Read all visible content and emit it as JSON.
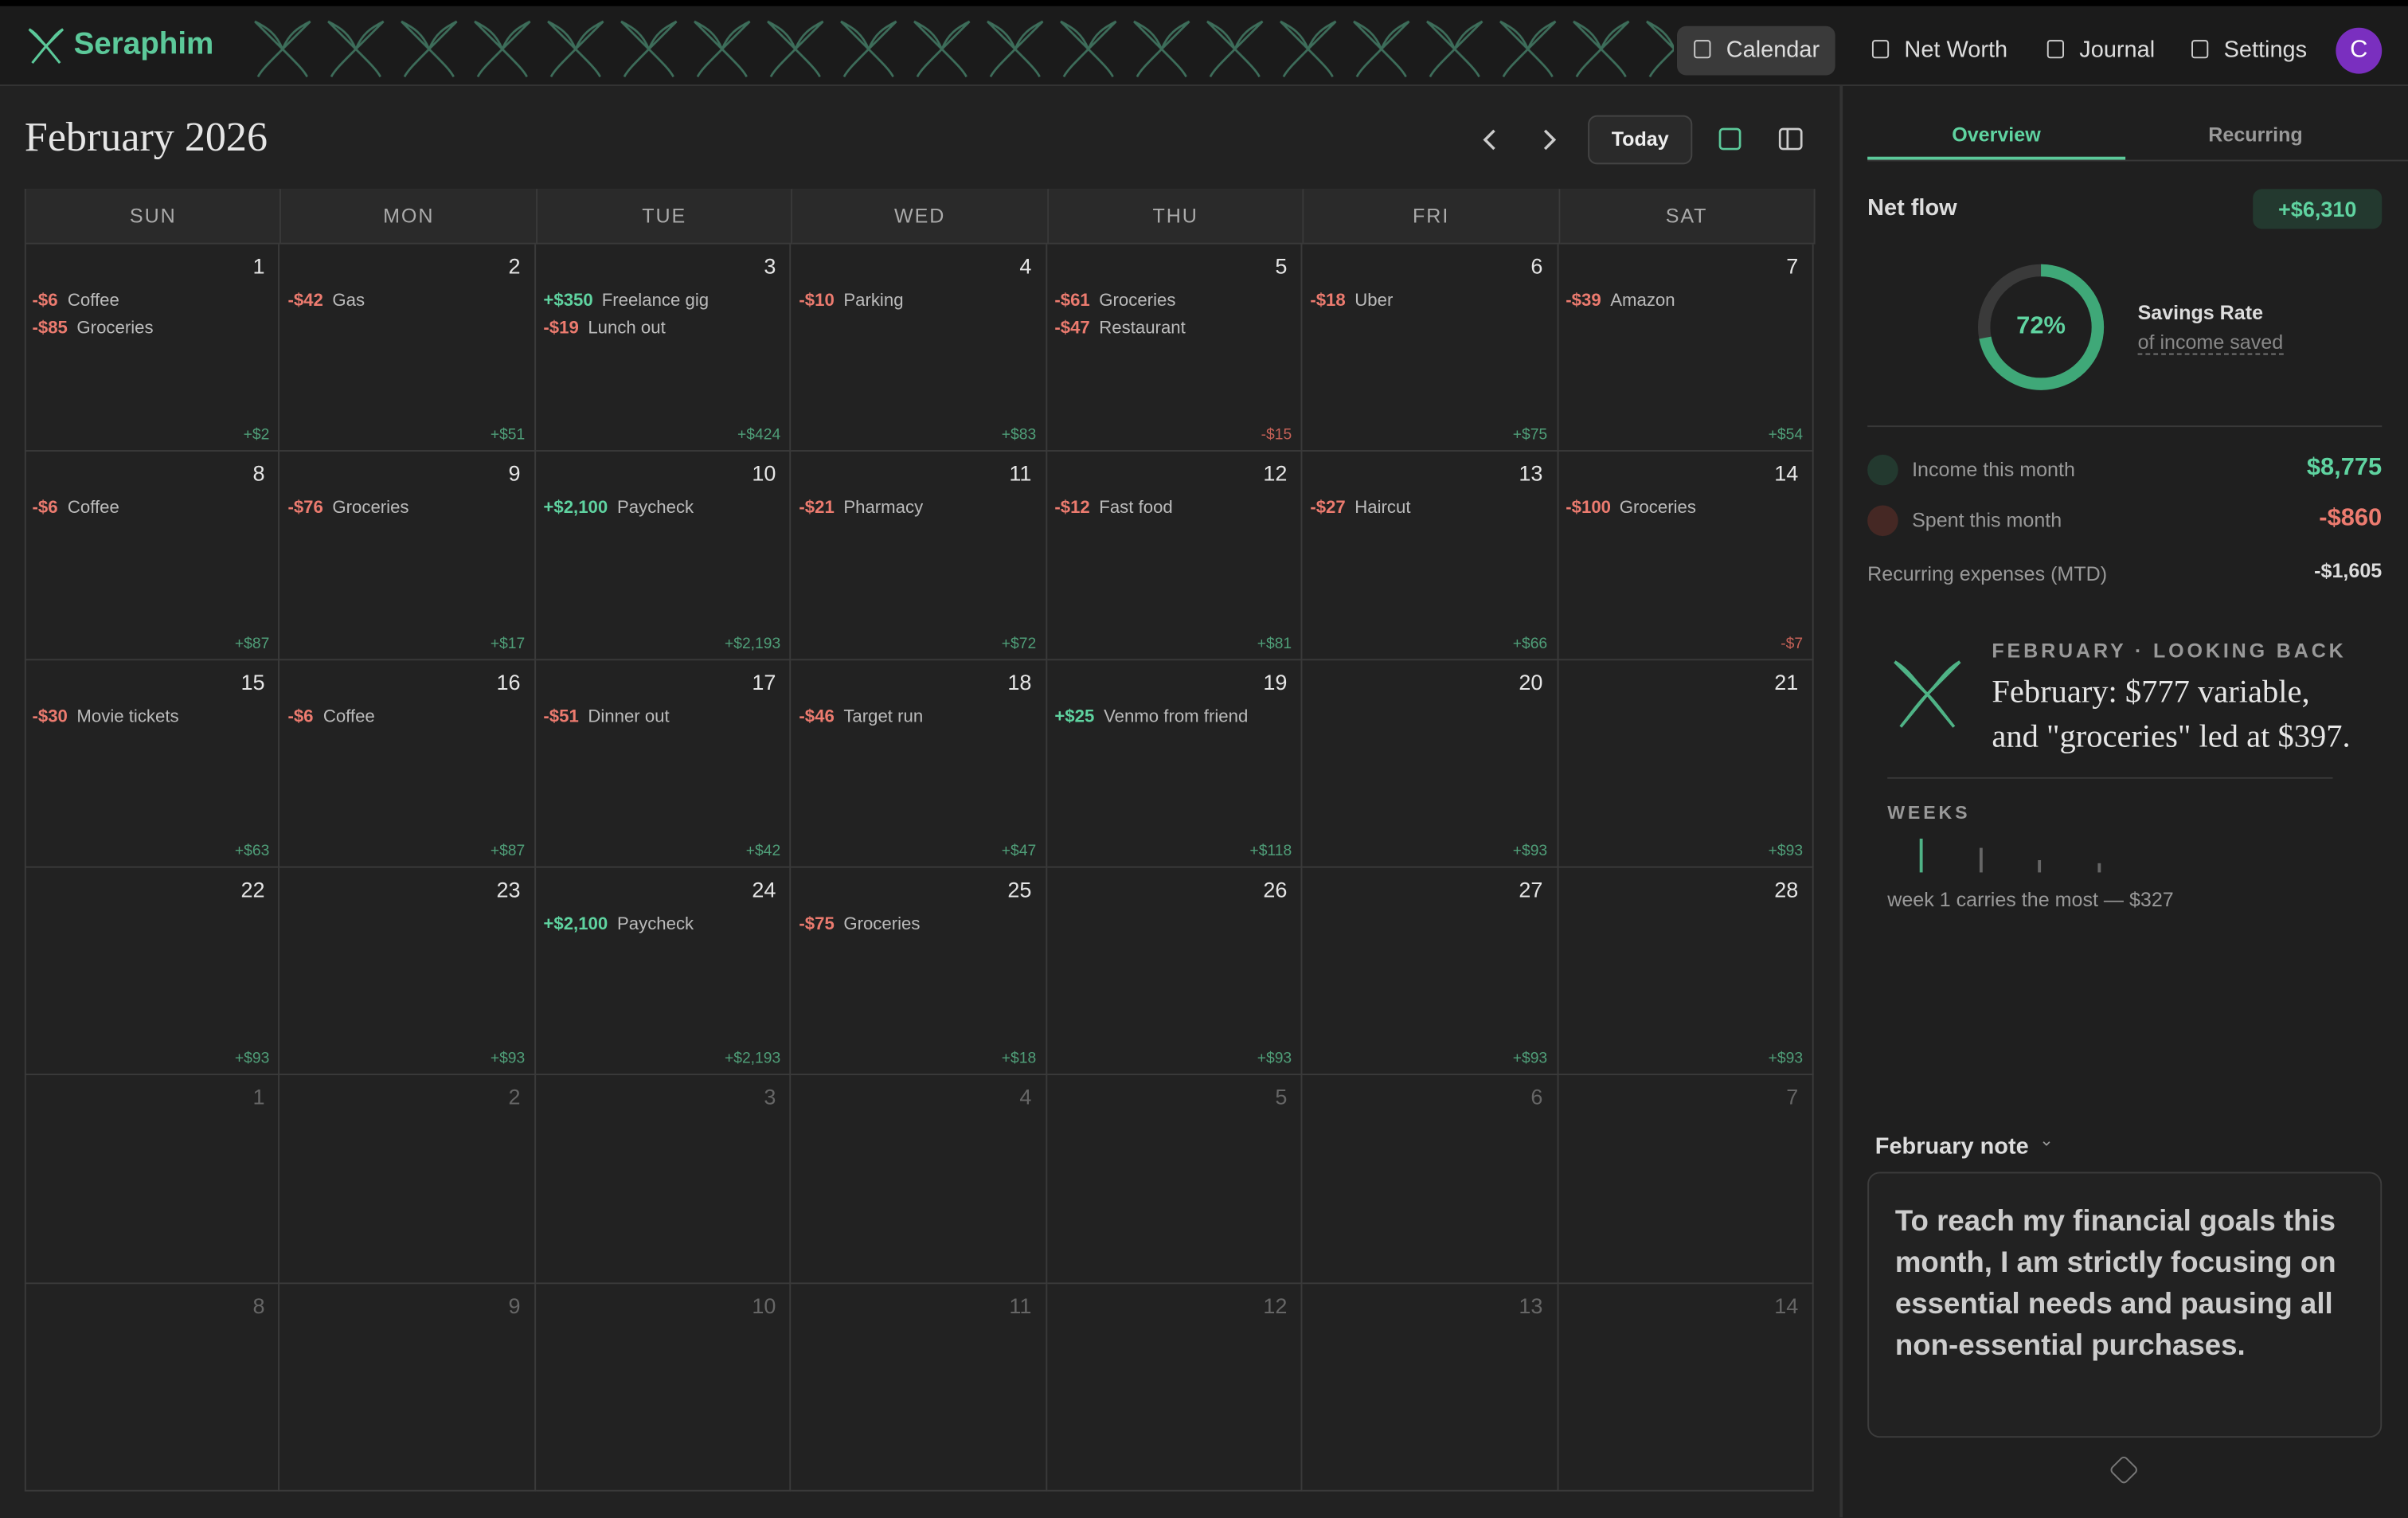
{
  "header": {
    "brand": "Seraphim",
    "nav": [
      "Calendar",
      "Net Worth",
      "Journal",
      "Settings"
    ],
    "avatar": "C"
  },
  "calendar": {
    "title": "February 2026",
    "today": "Today",
    "weekdays": [
      "SUN",
      "MON",
      "TUE",
      "WED",
      "THU",
      "FRI",
      "SAT"
    ],
    "days": [
      {
        "day": 1,
        "items": [
          [
            "-$6",
            "Coffee"
          ],
          [
            "-$85",
            "Groceries"
          ]
        ],
        "net": "+$2"
      },
      {
        "day": 2,
        "items": [
          [
            "-$42",
            "Gas"
          ]
        ],
        "net": "+$51"
      },
      {
        "day": 3,
        "items": [
          [
            "+$350",
            "Freelance gig"
          ],
          [
            "-$19",
            "Lunch out"
          ]
        ],
        "net": "+$424"
      },
      {
        "day": 4,
        "items": [
          [
            "-$10",
            "Parking"
          ]
        ],
        "net": "+$83"
      },
      {
        "day": 5,
        "items": [
          [
            "-$61",
            "Groceries"
          ],
          [
            "-$47",
            "Restaurant"
          ]
        ],
        "net": "-$15"
      },
      {
        "day": 6,
        "items": [
          [
            "-$18",
            "Uber"
          ]
        ],
        "net": "+$75"
      },
      {
        "day": 7,
        "items": [
          [
            "-$39",
            "Amazon"
          ]
        ],
        "net": "+$54"
      },
      {
        "day": 8,
        "items": [
          [
            "-$6",
            "Coffee"
          ]
        ],
        "net": "+$87"
      },
      {
        "day": 9,
        "items": [
          [
            "-$76",
            "Groceries"
          ]
        ],
        "net": "+$17"
      },
      {
        "day": 10,
        "items": [
          [
            "+$2,100",
            "Paycheck"
          ]
        ],
        "net": "+$2,193"
      },
      {
        "day": 11,
        "items": [
          [
            "-$21",
            "Pharmacy"
          ]
        ],
        "net": "+$72"
      },
      {
        "day": 12,
        "items": [
          [
            "-$12",
            "Fast food"
          ]
        ],
        "net": "+$81"
      },
      {
        "day": 13,
        "items": [
          [
            "-$27",
            "Haircut"
          ]
        ],
        "net": "+$66"
      },
      {
        "day": 14,
        "items": [
          [
            "-$100",
            "Groceries"
          ]
        ],
        "net": "-$7"
      },
      {
        "day": 15,
        "items": [
          [
            "-$30",
            "Movie tickets"
          ]
        ],
        "net": "+$63"
      },
      {
        "day": 16,
        "items": [
          [
            "-$6",
            "Coffee"
          ]
        ],
        "net": "+$87"
      },
      {
        "day": 17,
        "items": [
          [
            "-$51",
            "Dinner out"
          ]
        ],
        "net": "+$42"
      },
      {
        "day": 18,
        "items": [
          [
            "-$46",
            "Target run"
          ]
        ],
        "net": "+$47"
      },
      {
        "day": 19,
        "items": [
          [
            "+$25",
            "Venmo from friend"
          ]
        ],
        "net": "+$118"
      },
      {
        "day": 20,
        "items": [],
        "net": "+$93"
      },
      {
        "day": 21,
        "items": [],
        "net": "+$93"
      },
      {
        "day": 22,
        "items": [],
        "net": "+$93"
      },
      {
        "day": 23,
        "items": [],
        "net": "+$93"
      },
      {
        "day": 24,
        "items": [
          [
            "+$2,100",
            "Paycheck"
          ]
        ],
        "net": "+$2,193"
      },
      {
        "day": 25,
        "items": [
          [
            "-$75",
            "Groceries"
          ]
        ],
        "net": "+$18"
      },
      {
        "day": 26,
        "items": [],
        "net": "+$93"
      },
      {
        "day": 27,
        "items": [],
        "net": "+$93"
      },
      {
        "day": 28,
        "items": [],
        "net": "+$93"
      }
    ],
    "next_month_days": [
      1,
      2,
      3,
      4,
      5,
      6,
      7,
      8,
      9,
      10,
      11,
      12,
      13,
      14
    ]
  },
  "sidebar": {
    "tabs": [
      "Overview",
      "Recurring"
    ],
    "net_flow": {
      "label": "Net flow",
      "value": "+$6,310"
    },
    "savings": {
      "rate": 72,
      "rate_label": "72%",
      "title": "Savings Rate",
      "subtitle": "of income saved"
    },
    "stats": [
      {
        "label": "Income this month",
        "value": "$8,775"
      },
      {
        "label": "Spent this month",
        "value": "-$860"
      },
      {
        "label": "Recurring expenses (MTD)",
        "value": "-$1,605"
      }
    ],
    "lookback": {
      "kicker": "FEBRUARY · LOOKING BACK",
      "headline": "February: $777 variable, and \"groceries\" led at $397.",
      "weeks_label": "WEEKS",
      "weeks_values": [
        327,
        240,
        120,
        90
      ],
      "caption": "week 1 carries the most — $327"
    },
    "note": {
      "title": "February note",
      "text": "To reach my financial goals this month, I am strictly focusing on essential needs and pausing all non-essential purchases."
    }
  }
}
